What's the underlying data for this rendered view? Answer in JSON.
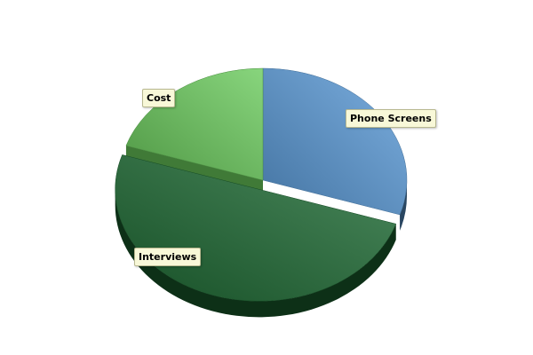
{
  "chart_data": {
    "type": "pie",
    "style": "3d",
    "slices": [
      {
        "label": "Phone Screens",
        "value": 30,
        "color": "#5b9bd8",
        "exploded": false
      },
      {
        "label": "Interviews",
        "value": 50,
        "color": "#1e6b34",
        "exploded": true
      },
      {
        "label": "Cost",
        "value": 20,
        "color": "#6acb5c",
        "exploded": false
      }
    ],
    "legend": "none"
  }
}
